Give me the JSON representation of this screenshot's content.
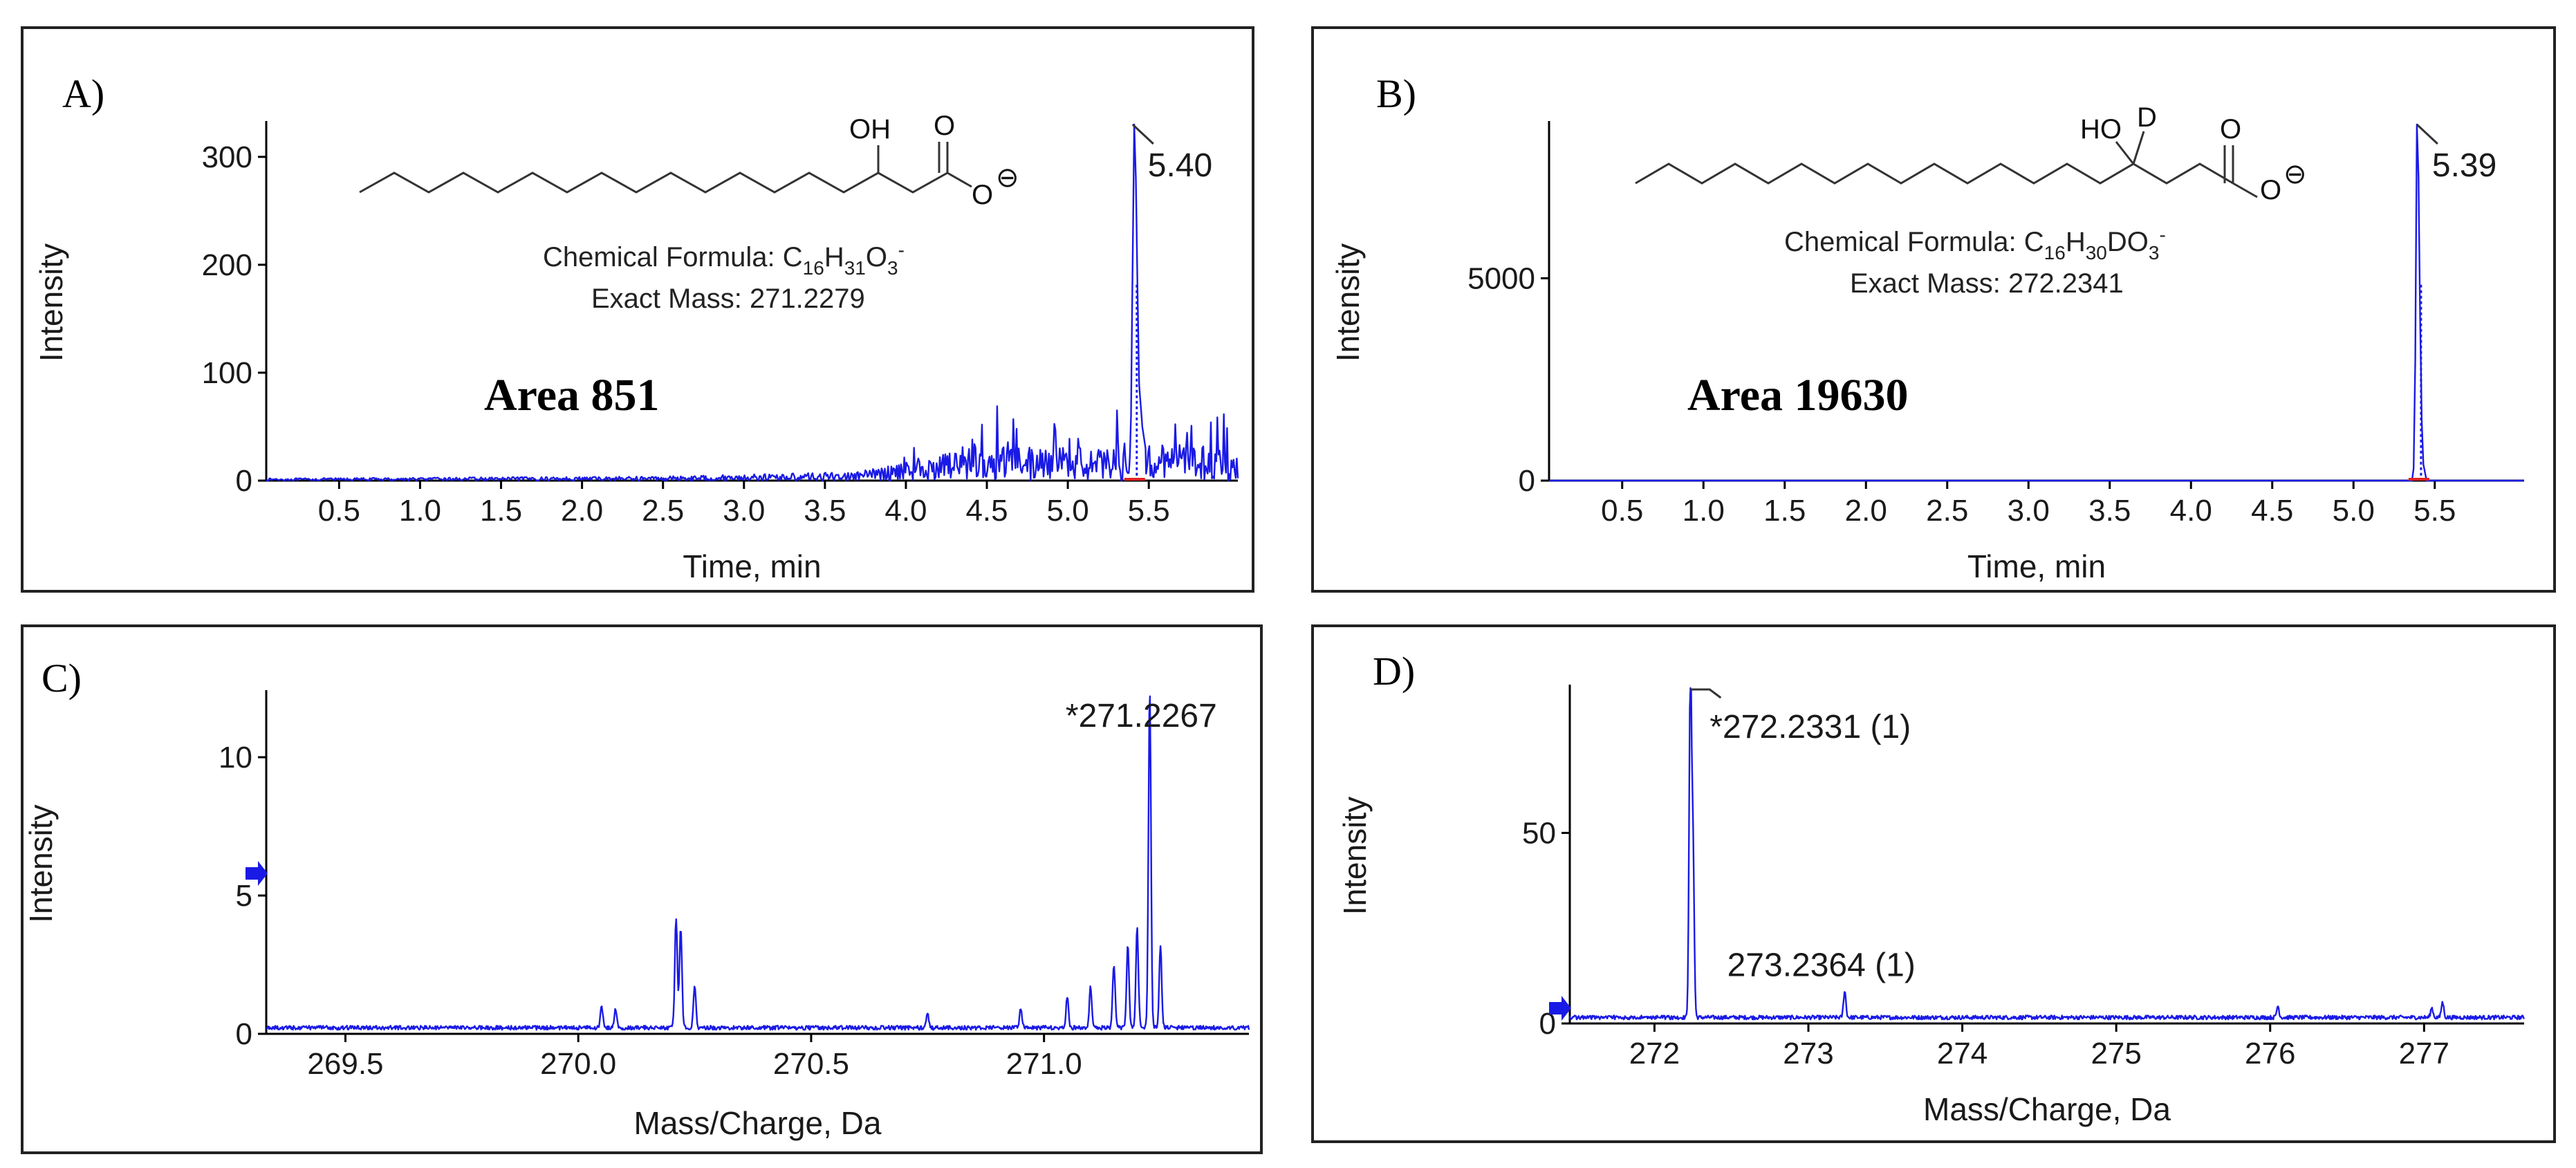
{
  "colors": {
    "trace": "#1a1ae6",
    "baseline_marker": "#e02020",
    "arrow": "#1a1ae6",
    "axis": "#000000"
  },
  "panels": {
    "A": {
      "letter": "A)",
      "area_label": "Area 851",
      "formula_prefix": "Chemical Formula: ",
      "formula_main": "C",
      "formula_s1": "16",
      "formula_h": "H",
      "formula_s2": "31",
      "formula_o": "O",
      "formula_s3": "3",
      "formula_charge": "-",
      "exact_mass": "Exact Mass: 271.2279",
      "oh": "OH",
      "o": "O",
      "ominus": "O",
      "minus_glyph": "⊖"
    },
    "B": {
      "letter": "B)",
      "area_label": "Area 19630",
      "formula_prefix": "Chemical Formula: ",
      "formula_main": "C",
      "formula_s1": "16",
      "formula_h": "H",
      "formula_s2": "30",
      "formula_d": "DO",
      "formula_s3": "3",
      "formula_charge": "-",
      "exact_mass": "Exact Mass: 272.2341",
      "ho": "HO",
      "d": "D",
      "o": "O",
      "ominus": "O",
      "minus_glyph": "⊖"
    },
    "C": {
      "letter": "C)"
    },
    "D": {
      "letter": "D)"
    }
  },
  "chart_data": [
    {
      "id": "A",
      "type": "line",
      "xlabel": "Time, min",
      "ylabel": "Intensity",
      "xlim": [
        0.05,
        6.05
      ],
      "ylim": [
        0,
        330
      ],
      "xticks": [
        0.5,
        1.0,
        1.5,
        2.0,
        2.5,
        3.0,
        3.5,
        4.0,
        4.5,
        5.0,
        5.5
      ],
      "xtick_labels": [
        "0.5",
        "1.0",
        "1.5",
        "2.0",
        "2.5",
        "3.0",
        "3.5",
        "4.0",
        "4.5",
        "5.0",
        "5.5"
      ],
      "yticks": [
        0,
        100,
        200,
        300
      ],
      "ytick_labels": [
        "0",
        "100",
        "200",
        "300"
      ],
      "peak": {
        "x": 5.4,
        "y": 330,
        "label": "5.40"
      },
      "noise_profile": [
        [
          0.0,
          2
        ],
        [
          2.5,
          4
        ],
        [
          3.7,
          8
        ],
        [
          4.0,
          18
        ],
        [
          4.4,
          32
        ],
        [
          5.35,
          30
        ],
        [
          5.6,
          35
        ],
        [
          6.0,
          30
        ]
      ],
      "peak_shape": [
        [
          5.38,
          5
        ],
        [
          5.39,
          60
        ],
        [
          5.4,
          200
        ],
        [
          5.41,
          330
        ],
        [
          5.42,
          280
        ],
        [
          5.43,
          180
        ],
        [
          5.44,
          90
        ],
        [
          5.46,
          50
        ],
        [
          5.48,
          30
        ]
      ]
    },
    {
      "id": "B",
      "type": "line",
      "xlabel": "Time, min",
      "ylabel": "Intensity",
      "xlim": [
        0.05,
        6.05
      ],
      "ylim": [
        0,
        8800
      ],
      "xticks": [
        0.5,
        1.0,
        1.5,
        2.0,
        2.5,
        3.0,
        3.5,
        4.0,
        4.5,
        5.0,
        5.5
      ],
      "xtick_labels": [
        "0.5",
        "1.0",
        "1.5",
        "2.0",
        "2.5",
        "3.0",
        "3.5",
        "4.0",
        "4.5",
        "5.0",
        "5.5"
      ],
      "yticks": [
        0,
        5000
      ],
      "ytick_labels": [
        "0",
        "5000"
      ],
      "peak": {
        "x": 5.39,
        "y": 8800,
        "label": "5.39"
      },
      "peak_shape": [
        [
          5.36,
          0
        ],
        [
          5.37,
          300
        ],
        [
          5.38,
          3000
        ],
        [
          5.39,
          8800
        ],
        [
          5.4,
          7500
        ],
        [
          5.41,
          4000
        ],
        [
          5.42,
          1500
        ],
        [
          5.43,
          400
        ],
        [
          5.45,
          0
        ]
      ]
    },
    {
      "id": "C",
      "type": "line",
      "xlabel": "Mass/Charge, Da",
      "ylabel": "Intensity",
      "xlim": [
        269.33,
        271.44
      ],
      "ylim": [
        0,
        12.3
      ],
      "xticks": [
        269.5,
        270.0,
        270.5,
        271.0
      ],
      "xtick_labels": [
        "269.5",
        "270.0",
        "270.5",
        "271.0"
      ],
      "yticks": [
        0,
        5,
        10
      ],
      "ytick_labels": [
        "0",
        "5",
        "10"
      ],
      "peaks": [
        {
          "x": 270.05,
          "y": 0.8
        },
        {
          "x": 270.08,
          "y": 0.7
        },
        {
          "x": 270.21,
          "y": 4.0
        },
        {
          "x": 270.22,
          "y": 3.6
        },
        {
          "x": 270.25,
          "y": 1.5
        },
        {
          "x": 270.75,
          "y": 0.5
        },
        {
          "x": 270.95,
          "y": 0.7
        },
        {
          "x": 271.05,
          "y": 1.1
        },
        {
          "x": 271.1,
          "y": 1.5
        },
        {
          "x": 271.15,
          "y": 2.3
        },
        {
          "x": 271.18,
          "y": 3.0
        },
        {
          "x": 271.2,
          "y": 3.6
        },
        {
          "x": 271.227,
          "y": 12.2
        },
        {
          "x": 271.25,
          "y": 3.0
        }
      ],
      "peak_label": {
        "x": 271.2267,
        "text": "*271.2267"
      },
      "arrow_y": 5.8
    },
    {
      "id": "D",
      "type": "line",
      "xlabel": "Mass/Charge, Da",
      "ylabel": "Intensity",
      "xlim": [
        271.45,
        277.65
      ],
      "ylim": [
        0,
        88
      ],
      "xticks": [
        272,
        273,
        274,
        275,
        276,
        277
      ],
      "xtick_labels": [
        "272",
        "273",
        "274",
        "275",
        "276",
        "277"
      ],
      "yticks": [
        0,
        50
      ],
      "ytick_labels": [
        "0",
        "50"
      ],
      "peaks": [
        {
          "x": 272.233,
          "y": 88
        },
        {
          "x": 272.25,
          "y": 45
        },
        {
          "x": 273.236,
          "y": 7
        },
        {
          "x": 276.05,
          "y": 3
        },
        {
          "x": 277.05,
          "y": 2.5
        },
        {
          "x": 277.12,
          "y": 4
        }
      ],
      "peak_labels": [
        {
          "x": 272.2331,
          "text": "*272.2331 (1)"
        },
        {
          "x": 273.2364,
          "text": "273.2364 (1)"
        }
      ],
      "arrow_y": 4
    }
  ]
}
